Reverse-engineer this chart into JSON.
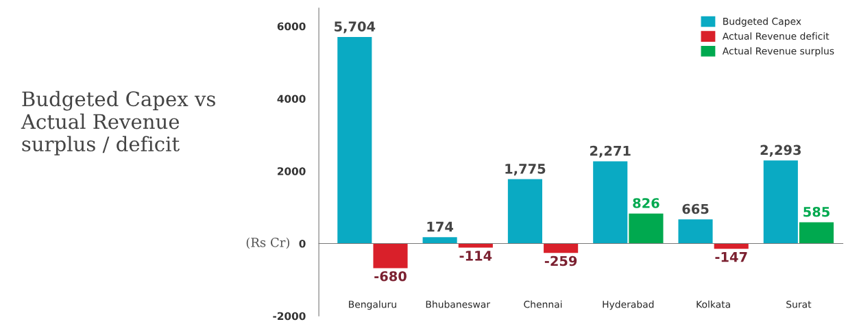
{
  "chart_data": {
    "type": "bar",
    "title": "Budgeted Capex vs Actual Revenue surplus / deficit",
    "categories": [
      "Bengaluru",
      "Bhubaneswar",
      "Chennai",
      "Hyderabad",
      "Kolkata",
      "Surat"
    ],
    "series": [
      {
        "name": "Budgeted Capex",
        "color": "#0aaac3",
        "values": [
          5704,
          174,
          1775,
          2271,
          665,
          2293
        ],
        "value_labels": [
          "5,704",
          "174",
          "1,775",
          "2,271",
          "665",
          "2,293"
        ]
      },
      {
        "name": "Actual Revenue deficit",
        "color": "#d9202a",
        "values": [
          -680,
          -114,
          -259,
          null,
          -147,
          null
        ],
        "value_labels": [
          "-680",
          "-114",
          "-259",
          null,
          "-147",
          null
        ]
      },
      {
        "name": "Actual Revenue surplus",
        "color": "#00a94f",
        "values": [
          null,
          null,
          null,
          826,
          null,
          585
        ],
        "value_labels": [
          null,
          null,
          null,
          "826",
          null,
          "585"
        ]
      }
    ],
    "ylim": [
      -2000,
      6500
    ],
    "yticks": [
      -2000,
      0,
      2000,
      4000,
      6000
    ],
    "annotations": [
      "(Rs Cr)"
    ],
    "legend": "top right"
  }
}
